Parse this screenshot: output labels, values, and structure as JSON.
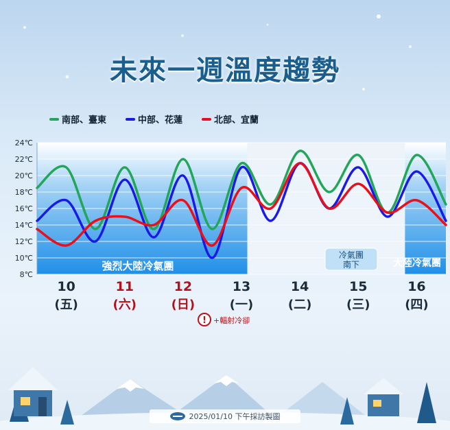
{
  "title": "未來一週溫度趨勢",
  "legend": [
    {
      "label": "南部、臺東",
      "color": "#22a65a"
    },
    {
      "label": "中部、花蓮",
      "color": "#1a1ae6"
    },
    {
      "label": "北部、宜蘭",
      "color": "#e8101a"
    }
  ],
  "days": [
    {
      "date": "10",
      "weekday": "(五)",
      "holiday": false
    },
    {
      "date": "11",
      "weekday": "(六)",
      "holiday": true
    },
    {
      "date": "12",
      "weekday": "(日)",
      "holiday": true
    },
    {
      "date": "13",
      "weekday": "(一)",
      "holiday": false
    },
    {
      "date": "14",
      "weekday": "(二)",
      "holiday": false
    },
    {
      "date": "15",
      "weekday": "(三)",
      "holiday": false
    },
    {
      "date": "16",
      "weekday": "(四)",
      "holiday": false
    }
  ],
  "annotations": {
    "strong_cold": "強烈大陸冷氣團",
    "cold_south_line1": "冷氣團",
    "cold_south_line2": "南下",
    "cold": "大陸冷氣團",
    "radiative_icon": "!",
    "radiative": "+輻射冷卻"
  },
  "footer": "2025/01/10 下午採訪製圖",
  "chart_data": {
    "type": "line",
    "title": "未來一週溫度趨勢",
    "ylim": [
      8,
      24
    ],
    "y_ticks": [
      8,
      10,
      12,
      14,
      16,
      18,
      20,
      22,
      24
    ],
    "y_unit": "℃",
    "x_labels": [
      "10 (五)",
      "11 (六)",
      "12 (日)",
      "13 (一)",
      "14 (二)",
      "15 (三)",
      "16 (四)"
    ],
    "x": [
      9.5,
      10,
      10.5,
      11,
      11.5,
      12,
      12.5,
      13,
      13.5,
      14,
      14.5,
      15,
      15.5,
      16,
      16.5
    ],
    "series": [
      {
        "name": "南部、臺東",
        "color": "#22a65a",
        "values": [
          18.5,
          21,
          13.5,
          21,
          13.5,
          22,
          13.5,
          21.5,
          16.5,
          23,
          18,
          22.5,
          15.5,
          22.5,
          16.5
        ]
      },
      {
        "name": "中部、花蓮",
        "color": "#1a1ae6",
        "values": [
          14.5,
          17,
          12,
          19.5,
          12.5,
          20,
          10,
          21,
          14.5,
          21.5,
          16,
          21,
          15,
          20.5,
          14.5
        ]
      },
      {
        "name": "北部、宜蘭",
        "color": "#e8101a",
        "values": [
          13.5,
          11.5,
          14.5,
          15,
          14,
          17,
          11.5,
          18.5,
          16,
          21.5,
          16,
          19,
          15.5,
          17,
          14
        ]
      }
    ],
    "shaded_periods": [
      {
        "from": 9.5,
        "to": 13.1,
        "label": "強烈大陸冷氣團"
      },
      {
        "from": 15.8,
        "to": 16.5,
        "label": "大陸冷氣團"
      }
    ],
    "grid": true
  },
  "icons": [
    "warning-icon",
    "snowflake-icon",
    "house-icon",
    "tree-icon",
    "mountain-icon",
    "logo-icon"
  ]
}
